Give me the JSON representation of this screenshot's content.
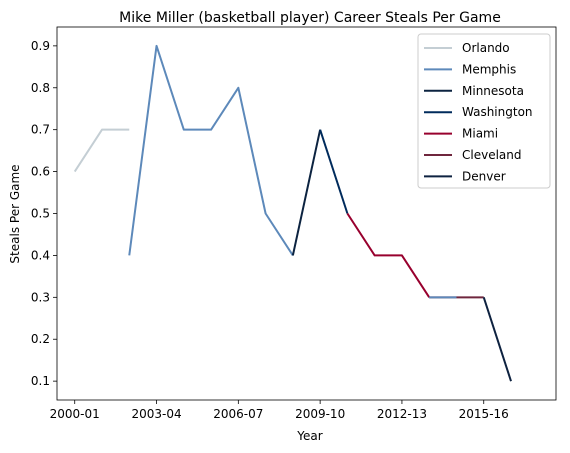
{
  "chart_data": {
    "type": "line",
    "title": "Mike Miller (basketball player) Career Steals Per Game",
    "xlabel": "Year",
    "ylabel": "Steals Per Game",
    "xlim": [
      -0.65,
      17.65
    ],
    "ylim": [
      0.055,
      0.945
    ],
    "x_ticks": [
      {
        "pos": 0,
        "label": "2000-01"
      },
      {
        "pos": 3,
        "label": "2003-04"
      },
      {
        "pos": 6,
        "label": "2006-07"
      },
      {
        "pos": 9,
        "label": "2009-10"
      },
      {
        "pos": 12,
        "label": "2012-13"
      },
      {
        "pos": 15,
        "label": "2015-16"
      }
    ],
    "y_ticks": [
      0.1,
      0.2,
      0.3,
      0.4,
      0.5,
      0.6,
      0.7,
      0.8,
      0.9
    ],
    "legend": "top-right",
    "grid": false,
    "series": [
      {
        "name": "Orlando",
        "color": "#c4ced4",
        "points": [
          [
            0,
            0.6
          ],
          [
            1,
            0.7
          ],
          [
            2,
            0.7
          ],
          [
            2,
            0.7
          ]
        ]
      },
      {
        "name": "Memphis",
        "color": "#5d89ba",
        "points": [
          [
            2,
            0.4
          ],
          [
            3,
            0.9
          ],
          [
            4,
            0.7
          ],
          [
            5,
            0.7
          ],
          [
            6,
            0.8
          ],
          [
            7,
            0.5
          ],
          [
            8,
            0.4
          ]
        ]
      },
      {
        "name": "Minnesota",
        "color": "#0c2340",
        "points": [
          [
            8,
            0.4
          ],
          [
            9,
            0.7
          ]
        ]
      },
      {
        "name": "Washington",
        "color": "#002b5c",
        "points": [
          [
            9,
            0.7
          ],
          [
            10,
            0.5
          ]
        ]
      },
      {
        "name": "Miami",
        "color": "#98002e",
        "points": [
          [
            10,
            0.5
          ],
          [
            11,
            0.4
          ],
          [
            12,
            0.4
          ],
          [
            13,
            0.3
          ]
        ]
      },
      {
        "name": "Cleveland",
        "color": "#6f263d",
        "points": [
          [
            13,
            0.3
          ],
          [
            14,
            0.3
          ],
          [
            15,
            0.3
          ]
        ]
      },
      {
        "name": "Denver",
        "color": "#0e2240",
        "points": [
          [
            15,
            0.3
          ],
          [
            16,
            0.1
          ]
        ]
      }
    ],
    "connectors": [
      {
        "color": "#5d89ba",
        "points": [
          [
            13,
            0.3
          ],
          [
            14,
            0.3
          ]
        ]
      }
    ]
  }
}
